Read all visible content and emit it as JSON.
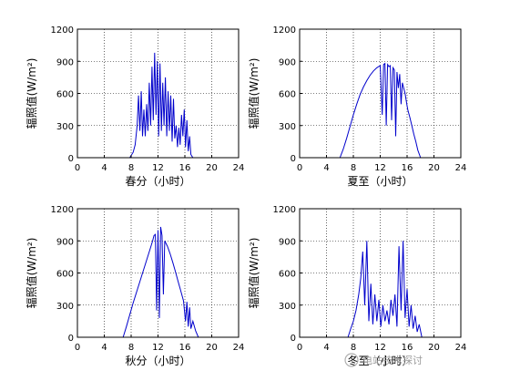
{
  "chart_data": [
    {
      "type": "line",
      "xlabel": "春分（小时）",
      "ylabel": "辐照值(W/m²)",
      "xlim": [
        0,
        24
      ],
      "ylim": [
        0,
        1200
      ],
      "xticks": [
        0,
        4,
        8,
        12,
        16,
        20,
        24
      ],
      "yticks": [
        0,
        300,
        600,
        900,
        1200
      ],
      "grid": true,
      "color": "#0000cc",
      "series": [
        {
          "x": [
            7.8,
            8.3,
            8.6,
            8.9,
            9.1,
            9.3,
            9.5,
            9.7,
            9.9,
            10.1,
            10.3,
            10.5,
            10.7,
            10.9,
            11.1,
            11.3,
            11.5,
            11.7,
            11.9,
            12.1,
            12.3,
            12.5,
            12.7,
            12.9,
            13.1,
            13.3,
            13.5,
            13.7,
            13.9,
            14.1,
            14.3,
            14.5,
            14.7,
            14.9,
            15.1,
            15.3,
            15.5,
            15.7,
            15.9,
            16.1,
            16.3,
            16.5,
            16.7,
            16.9,
            17.2
          ],
          "y": [
            0,
            50,
            120,
            300,
            580,
            250,
            620,
            200,
            450,
            200,
            500,
            250,
            700,
            300,
            850,
            350,
            980,
            400,
            900,
            200,
            880,
            250,
            700,
            300,
            750,
            200,
            620,
            250,
            580,
            150,
            550,
            180,
            300,
            100,
            280,
            120,
            400,
            200,
            450,
            100,
            350,
            60,
            200,
            30,
            0
          ]
        }
      ]
    },
    {
      "type": "line",
      "xlabel": "夏至（小时）",
      "ylabel": "辐照值(W/m²)",
      "xlim": [
        0,
        24
      ],
      "ylim": [
        0,
        1200
      ],
      "xticks": [
        0,
        4,
        8,
        12,
        16,
        20,
        24
      ],
      "yticks": [
        0,
        300,
        600,
        900,
        1200
      ],
      "grid": true,
      "color": "#0000cc",
      "series": [
        {
          "x": [
            6.0,
            6.5,
            7.0,
            7.5,
            8.0,
            8.5,
            9.0,
            9.5,
            10.0,
            10.5,
            11.0,
            11.5,
            12.0,
            12.3,
            12.5,
            12.7,
            12.9,
            13.1,
            13.3,
            13.5,
            13.7,
            13.9,
            14.1,
            14.3,
            14.5,
            14.7,
            14.9,
            15.1,
            15.3,
            15.5,
            15.7,
            15.9,
            16.1,
            16.4,
            16.7,
            17.0,
            17.3,
            17.6,
            18.0
          ],
          "y": [
            0,
            80,
            180,
            290,
            400,
            500,
            590,
            660,
            720,
            770,
            810,
            840,
            860,
            400,
            870,
            880,
            300,
            870,
            850,
            860,
            350,
            840,
            820,
            200,
            800,
            650,
            780,
            500,
            700,
            650,
            600,
            520,
            450,
            380,
            300,
            220,
            150,
            70,
            0
          ]
        }
      ]
    },
    {
      "type": "line",
      "xlabel": "秋分（小时）",
      "ylabel": "辐照值(W/m²)",
      "xlim": [
        0,
        24
      ],
      "ylim": [
        0,
        1200
      ],
      "xticks": [
        0,
        4,
        8,
        12,
        16,
        20,
        24
      ],
      "yticks": [
        0,
        300,
        600,
        900,
        1200
      ],
      "grid": true,
      "color": "#0000cc",
      "series": [
        {
          "x": [
            6.8,
            7.3,
            7.8,
            8.3,
            8.8,
            9.3,
            9.8,
            10.3,
            10.8,
            11.2,
            11.4,
            11.6,
            11.8,
            12.0,
            12.2,
            12.4,
            12.6,
            12.8,
            13.0,
            13.4,
            13.8,
            14.2,
            14.6,
            15.0,
            15.4,
            15.8,
            16.1,
            16.3,
            16.5,
            16.7,
            16.9,
            17.2,
            17.6,
            18.0
          ],
          "y": [
            0,
            100,
            210,
            320,
            420,
            520,
            620,
            720,
            820,
            900,
            950,
            960,
            250,
            1000,
            180,
            1030,
            950,
            400,
            900,
            850,
            780,
            700,
            610,
            520,
            430,
            340,
            150,
            330,
            100,
            280,
            80,
            150,
            60,
            0
          ]
        }
      ]
    },
    {
      "type": "line",
      "xlabel": "冬至（小时）",
      "ylabel": "辐照值(W/m²)",
      "xlim": [
        0,
        24
      ],
      "ylim": [
        0,
        1200
      ],
      "xticks": [
        0,
        4,
        8,
        12,
        16,
        20,
        24
      ],
      "yticks": [
        0,
        300,
        600,
        900,
        1200
      ],
      "grid": true,
      "color": "#0000cc",
      "series": [
        {
          "x": [
            7.2,
            7.6,
            8.0,
            8.4,
            8.8,
            9.1,
            9.4,
            9.7,
            10.0,
            10.3,
            10.6,
            10.9,
            11.2,
            11.5,
            11.8,
            12.1,
            12.4,
            12.7,
            13.0,
            13.3,
            13.6,
            13.9,
            14.2,
            14.5,
            14.8,
            15.1,
            15.4,
            15.7,
            16.0,
            16.3,
            16.6,
            16.9,
            17.2,
            17.5,
            17.8,
            18.2
          ],
          "y": [
            0,
            80,
            150,
            250,
            400,
            550,
            800,
            300,
            900,
            150,
            500,
            120,
            400,
            150,
            350,
            100,
            300,
            150,
            250,
            120,
            350,
            200,
            400,
            100,
            850,
            250,
            900,
            180,
            450,
            100,
            300,
            80,
            200,
            50,
            120,
            0
          ]
        }
      ]
    }
  ],
  "watermark": "电站技术探讨"
}
